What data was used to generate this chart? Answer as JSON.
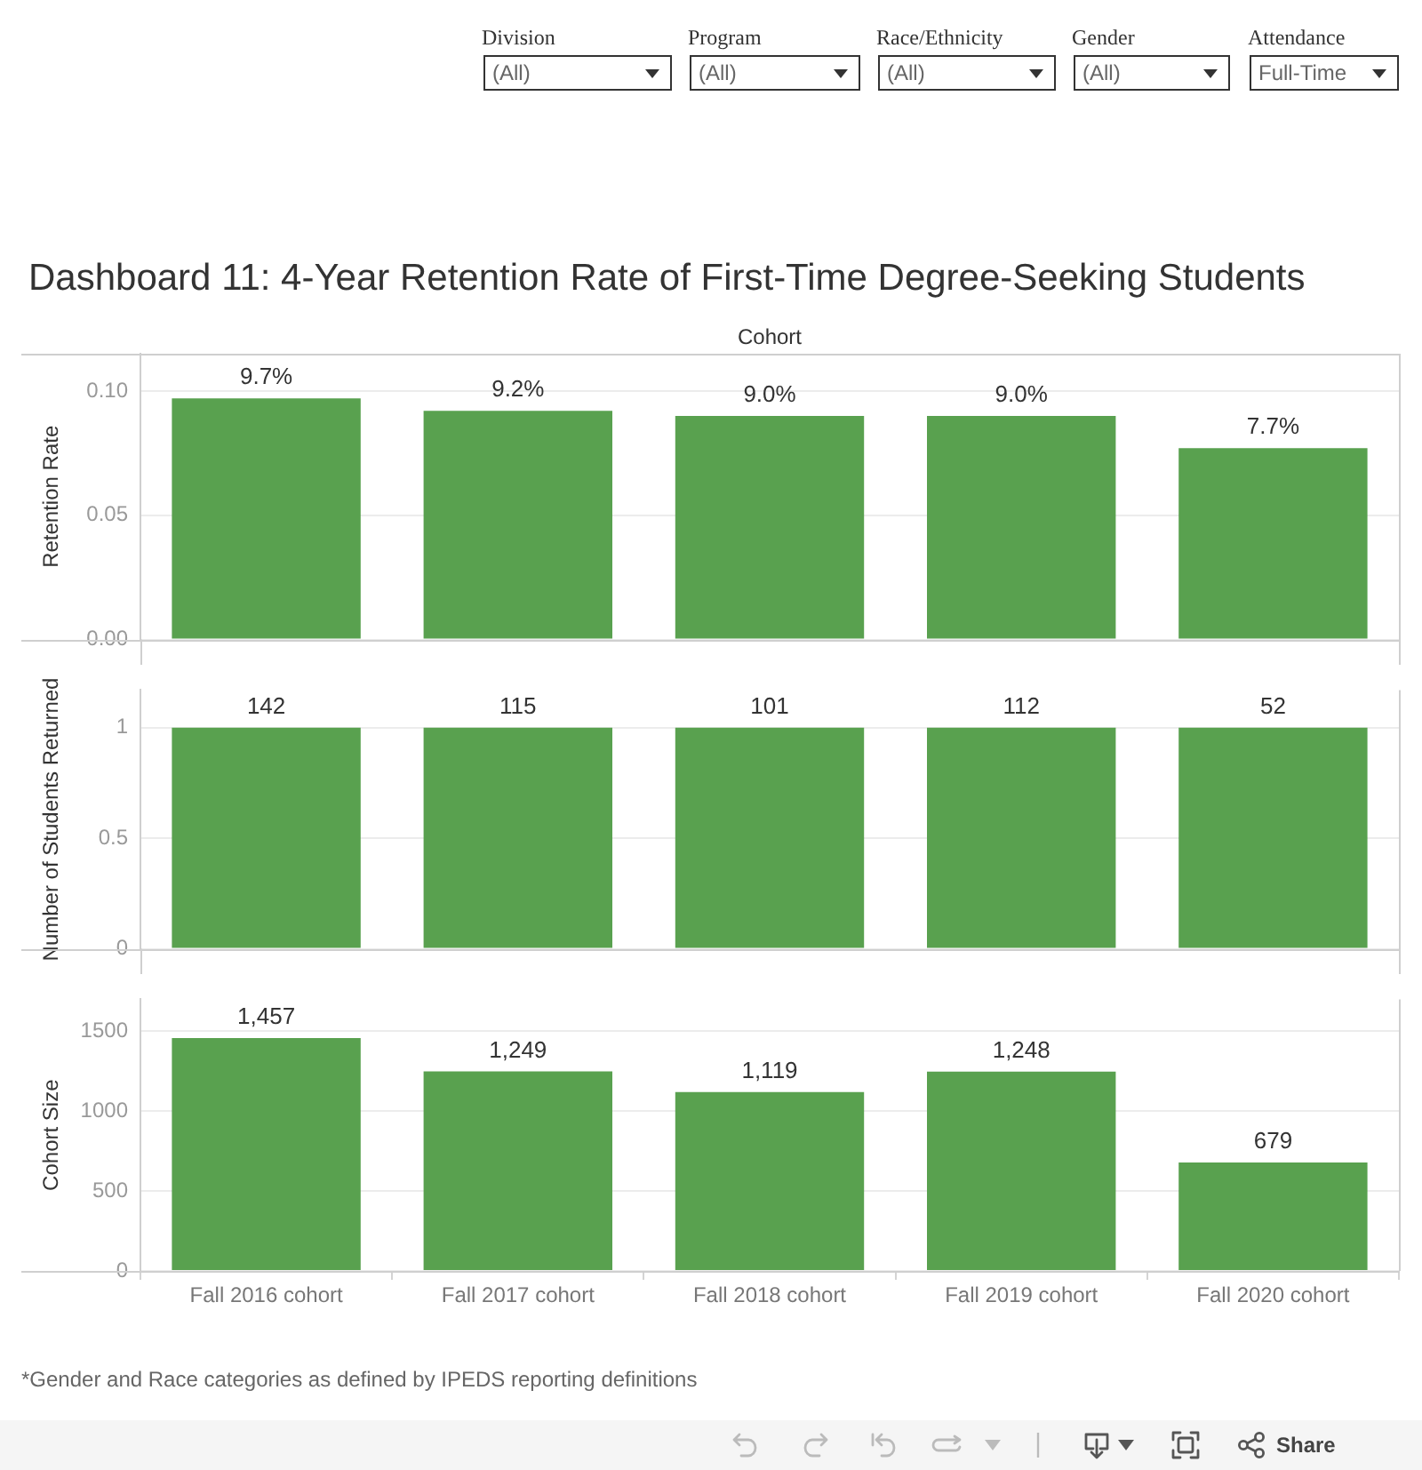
{
  "chart_data": [
    {
      "type": "bar",
      "title": "Dashboard 11: 4-Year Retention Rate of First-Time Degree-Seeking Students",
      "xlabel": "Cohort",
      "ylabel": "Retention Rate",
      "categories": [
        "Fall 2016 cohort",
        "Fall 2017 cohort",
        "Fall 2018 cohort",
        "Fall 2019 cohort",
        "Fall 2020 cohort"
      ],
      "values": [
        0.097,
        0.092,
        0.09,
        0.09,
        0.077
      ],
      "value_labels": [
        "9.7%",
        "9.2%",
        "9.0%",
        "9.0%",
        "7.7%"
      ],
      "color": "#59a14f",
      "ylim": [
        0,
        0.115
      ],
      "yticks": [
        {
          "value": 0,
          "label": "0.00"
        },
        0.05,
        {
          "value": 0.1,
          "label": "0.10"
        }
      ],
      "grid": "y",
      "tick_labels": "y",
      "annotations": [
        "Division",
        "(All)",
        "Program",
        "(All)",
        "Race/Ethnicity",
        "(All)",
        "Gender",
        "(All)",
        "Attendance",
        "Full-Time"
      ]
    },
    {
      "type": "bar",
      "ylabel": "Number of Students Returned",
      "categories": [
        "Fall 2016 cohort",
        "Fall 2017 cohort",
        "Fall 2018 cohort",
        "Fall 2019 cohort",
        "Fall 2020 cohort"
      ],
      "values": [
        1,
        1,
        1,
        1,
        1
      ],
      "color": "#59a14f",
      "ylim": [
        0,
        1.17
      ],
      "yticks": [
        0,
        0.5,
        1
      ],
      "grid": "y",
      "tick_labels": "y",
      "annotations": [
        {
          "text": "142",
          "x": "Fall 2016 cohort",
          "y": 1
        },
        {
          "text": "115",
          "x": "Fall 2017 cohort",
          "y": 1
        },
        {
          "text": "101",
          "x": "Fall 2018 cohort",
          "y": 1
        },
        {
          "text": "112",
          "x": "Fall 2019 cohort",
          "y": 1
        },
        {
          "text": "52",
          "x": "Fall 2020 cohort",
          "y": 1
        }
      ]
    },
    {
      "type": "bar",
      "ylabel": "Cohort Size",
      "categories": [
        "Fall 2016 cohort",
        "Fall 2017 cohort",
        "Fall 2018 cohort",
        "Fall 2019 cohort",
        "Fall 2020 cohort"
      ],
      "values": [
        1457,
        1249,
        1119,
        1248,
        679
      ],
      "value_labels": [
        "1,457",
        "1,249",
        "1,119",
        "1,248",
        "679"
      ],
      "color": "#59a14f",
      "ylim": [
        0,
        1700
      ],
      "yticks": [
        0,
        500,
        1000,
        1500
      ],
      "grid": "y",
      "annotations": [
        "*Gender and Race categories as defined by IPEDS reporting definitions",
        "Share"
      ]
    }
  ]
}
